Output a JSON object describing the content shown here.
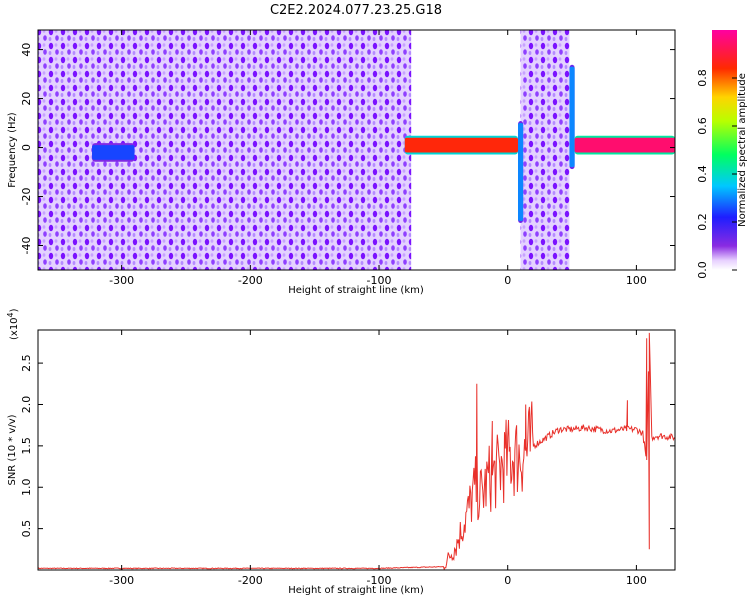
{
  "title": "C2E2.2024.077.23.25.G18",
  "chart_data": [
    {
      "type": "heatmap",
      "xlabel": "Height of straight line (km)",
      "ylabel": "Frequency (Hz)",
      "xlim": [
        -365,
        130
      ],
      "ylim": [
        -50,
        48
      ],
      "xticks": [
        -300,
        -200,
        -100,
        0,
        100
      ],
      "xtick_labels": [
        "-300",
        "-200",
        "-100",
        "0",
        "100"
      ],
      "yticks": [
        -40,
        -20,
        0,
        20,
        40
      ],
      "ytick_labels": [
        "-40",
        "-20",
        "0",
        "20",
        "40"
      ],
      "colorbar": {
        "label": "Normalized spectral amplitude",
        "range": [
          0,
          1
        ],
        "ticks": [
          0.0,
          0.2,
          0.4,
          0.6,
          0.8
        ],
        "tick_labels": [
          "0.0",
          "0.2",
          "0.4",
          "0.6",
          "0.8"
        ],
        "colormap": "rainbow (white-violet-blue-cyan-green-yellow-red-magenta)"
      },
      "noise_regions_km": [
        [
          -365,
          -75
        ],
        [
          10,
          48
        ]
      ],
      "empty_regions_km": [
        [
          -75,
          10
        ],
        [
          48,
          130
        ]
      ],
      "signal_features": [
        {
          "x_range": [
            -323,
            -290
          ],
          "frequency_hz": -2,
          "amplitude": 0.25
        },
        {
          "x_range": [
            -80,
            8
          ],
          "frequency_hz": 1,
          "amplitude": 0.85
        },
        {
          "x_range": [
            8,
            12
          ],
          "frequency_hz": [
            -30,
            10
          ],
          "amplitude": 0.3
        },
        {
          "x_range": [
            48,
            52
          ],
          "frequency_hz": [
            -8,
            33
          ],
          "amplitude": 0.3
        },
        {
          "x_range": [
            52,
            130
          ],
          "frequency_hz": 1,
          "amplitude": 0.95
        }
      ]
    },
    {
      "type": "line",
      "xlabel": "Height of straight line (km)",
      "ylabel": "SNR (10 * v/v)",
      "y_multiplier_label": "(x10",
      "y_multiplier_exp": "4",
      "y_multiplier_close": ")",
      "xlim": [
        -365,
        130
      ],
      "ylim": [
        0,
        2.9
      ],
      "xticks": [
        -300,
        -200,
        -100,
        0,
        100
      ],
      "xtick_labels": [
        "-300",
        "-200",
        "-100",
        "0",
        "100"
      ],
      "yticks": [
        0.5,
        1.0,
        1.5,
        2.0,
        2.5
      ],
      "ytick_labels": [
        "0.5",
        "1.0",
        "1.5",
        "2.0",
        "2.5"
      ],
      "color": "#e8302a",
      "x": [
        -365,
        -300,
        -200,
        -100,
        -50,
        -40,
        -30,
        -25,
        -20,
        -15,
        -10,
        0,
        10,
        20,
        30,
        40,
        50,
        60,
        70,
        80,
        90,
        100,
        105,
        108,
        110,
        112,
        115,
        120,
        130
      ],
      "y": [
        0.02,
        0.02,
        0.02,
        0.02,
        0.04,
        0.3,
        0.75,
        1.0,
        0.9,
        1.1,
        1.15,
        1.35,
        1.4,
        1.5,
        1.6,
        1.7,
        1.7,
        1.72,
        1.7,
        1.68,
        1.7,
        1.7,
        1.65,
        1.3,
        2.9,
        1.6,
        1.62,
        1.62,
        1.6
      ],
      "spikes": [
        {
          "x": -24,
          "y": 2.25
        },
        {
          "x": -12,
          "y": 1.8
        },
        {
          "x": 14,
          "y": 2.0
        },
        {
          "x": 93,
          "y": 2.05
        },
        {
          "x": 108,
          "y": 2.8
        },
        {
          "x": 110,
          "y": 0.25
        }
      ]
    }
  ]
}
